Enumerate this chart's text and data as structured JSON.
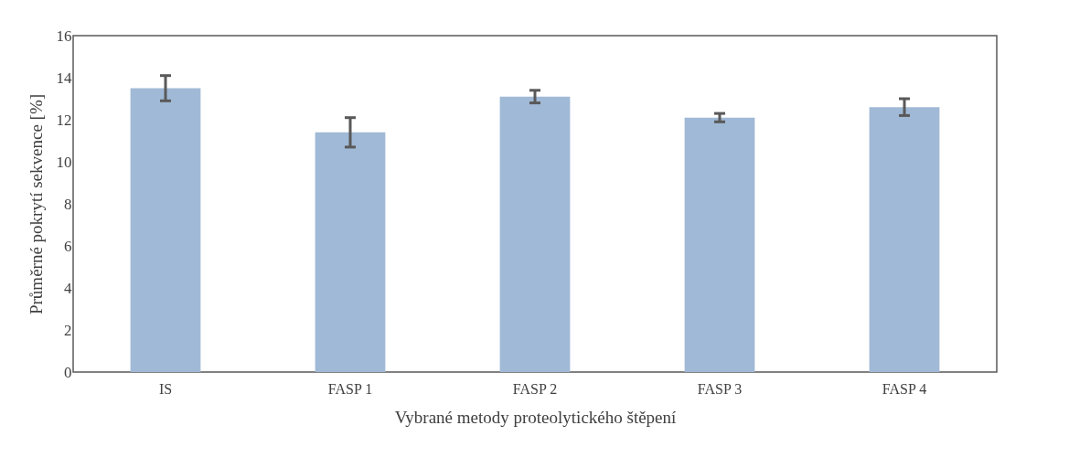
{
  "chart_data": {
    "type": "bar",
    "xlabel": "Vybrané metody proteolytického štěpení",
    "ylabel": "Průměrné pokrytí sekvence [%]",
    "categories": [
      "IS",
      "FASP 1",
      "FASP 2",
      "FASP 3",
      "FASP 4"
    ],
    "values": [
      13.5,
      11.4,
      13.1,
      12.1,
      12.6
    ],
    "errors": [
      0.6,
      0.7,
      0.3,
      0.2,
      0.4
    ],
    "color": "#a0b9d6",
    "ylim": [
      0,
      16
    ],
    "yticks": [
      0,
      2,
      4,
      6,
      8,
      10,
      12,
      14,
      16
    ],
    "grid": false
  }
}
